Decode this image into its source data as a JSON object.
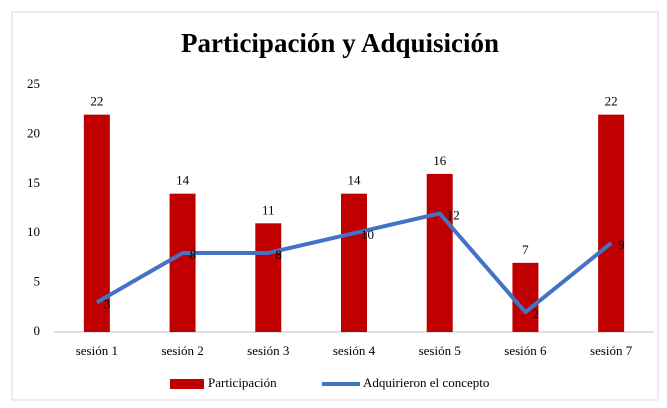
{
  "chart_data": {
    "type": "combo",
    "title": "Participación y Adquisición",
    "categories": [
      "sesión 1",
      "sesión 2",
      "sesión 3",
      "sesión 4",
      "sesión 5",
      "sesión 6",
      "sesión 7"
    ],
    "series": [
      {
        "name": "Participación",
        "type": "bar",
        "color": "#c00000",
        "values": [
          22,
          14,
          11,
          14,
          16,
          7,
          22
        ]
      },
      {
        "name": "Adquirieron el concepto",
        "type": "line",
        "color": "#4472c4",
        "values": [
          3,
          8,
          8,
          10,
          12,
          2,
          9
        ]
      }
    ],
    "ylim": [
      0,
      25
    ],
    "yticks": [
      0,
      5,
      10,
      15,
      20,
      25
    ],
    "grid": false,
    "legend": "bottom"
  }
}
